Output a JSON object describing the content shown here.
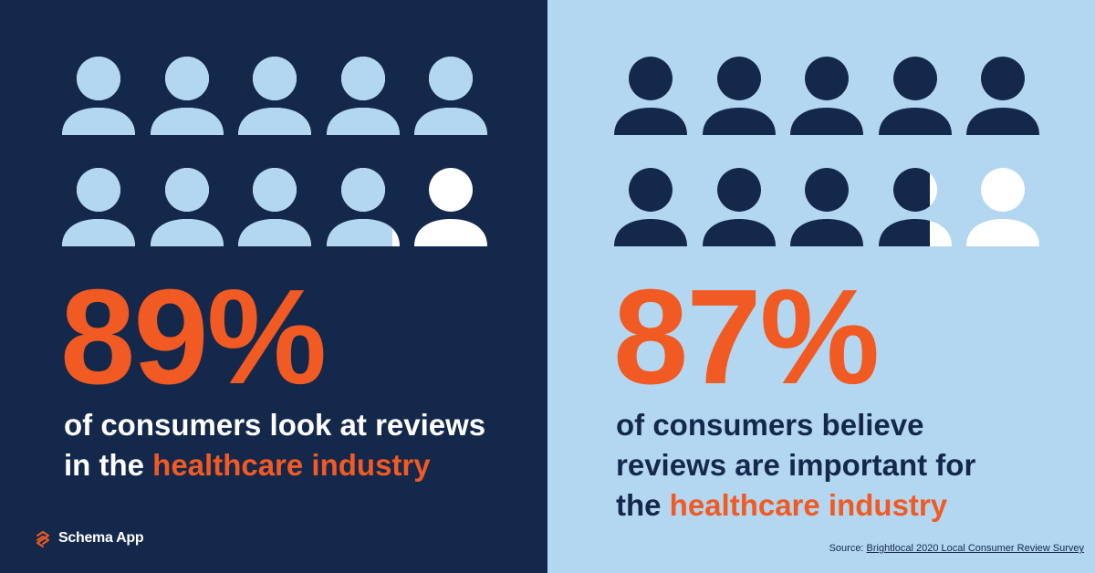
{
  "chart_data": [
    {
      "type": "pictograph",
      "value_percent": 89,
      "icons_total": 10,
      "value_label": "89%",
      "desc_line1": "of consumers look at reviews",
      "desc_line2_prefix": "in the ",
      "desc_highlight": "healthcare industry",
      "colors": {
        "background": "#14284b",
        "filled": "#b3d7f1",
        "empty": "#ffffff",
        "value": "#f15a22"
      }
    },
    {
      "type": "pictograph",
      "value_percent": 87,
      "icons_total": 10,
      "value_label": "87%",
      "desc_line1": "of consumers believe",
      "desc_line2": "reviews are important for",
      "desc_line3_prefix": "the ",
      "desc_highlight": "healthcare industry",
      "colors": {
        "background": "#b3d7f1",
        "filled": "#14284b",
        "empty": "#ffffff",
        "value": "#f15a22"
      }
    }
  ],
  "brand": {
    "name": "Schema App",
    "icon": "schema-app-logo-icon"
  },
  "source": {
    "prefix": "Source: ",
    "link_text": "Brightlocal 2020 Local Consumer Review Survey"
  },
  "colors": {
    "accent": "#f15a22",
    "navy": "#14284b",
    "light_blue": "#b3d7f1"
  }
}
